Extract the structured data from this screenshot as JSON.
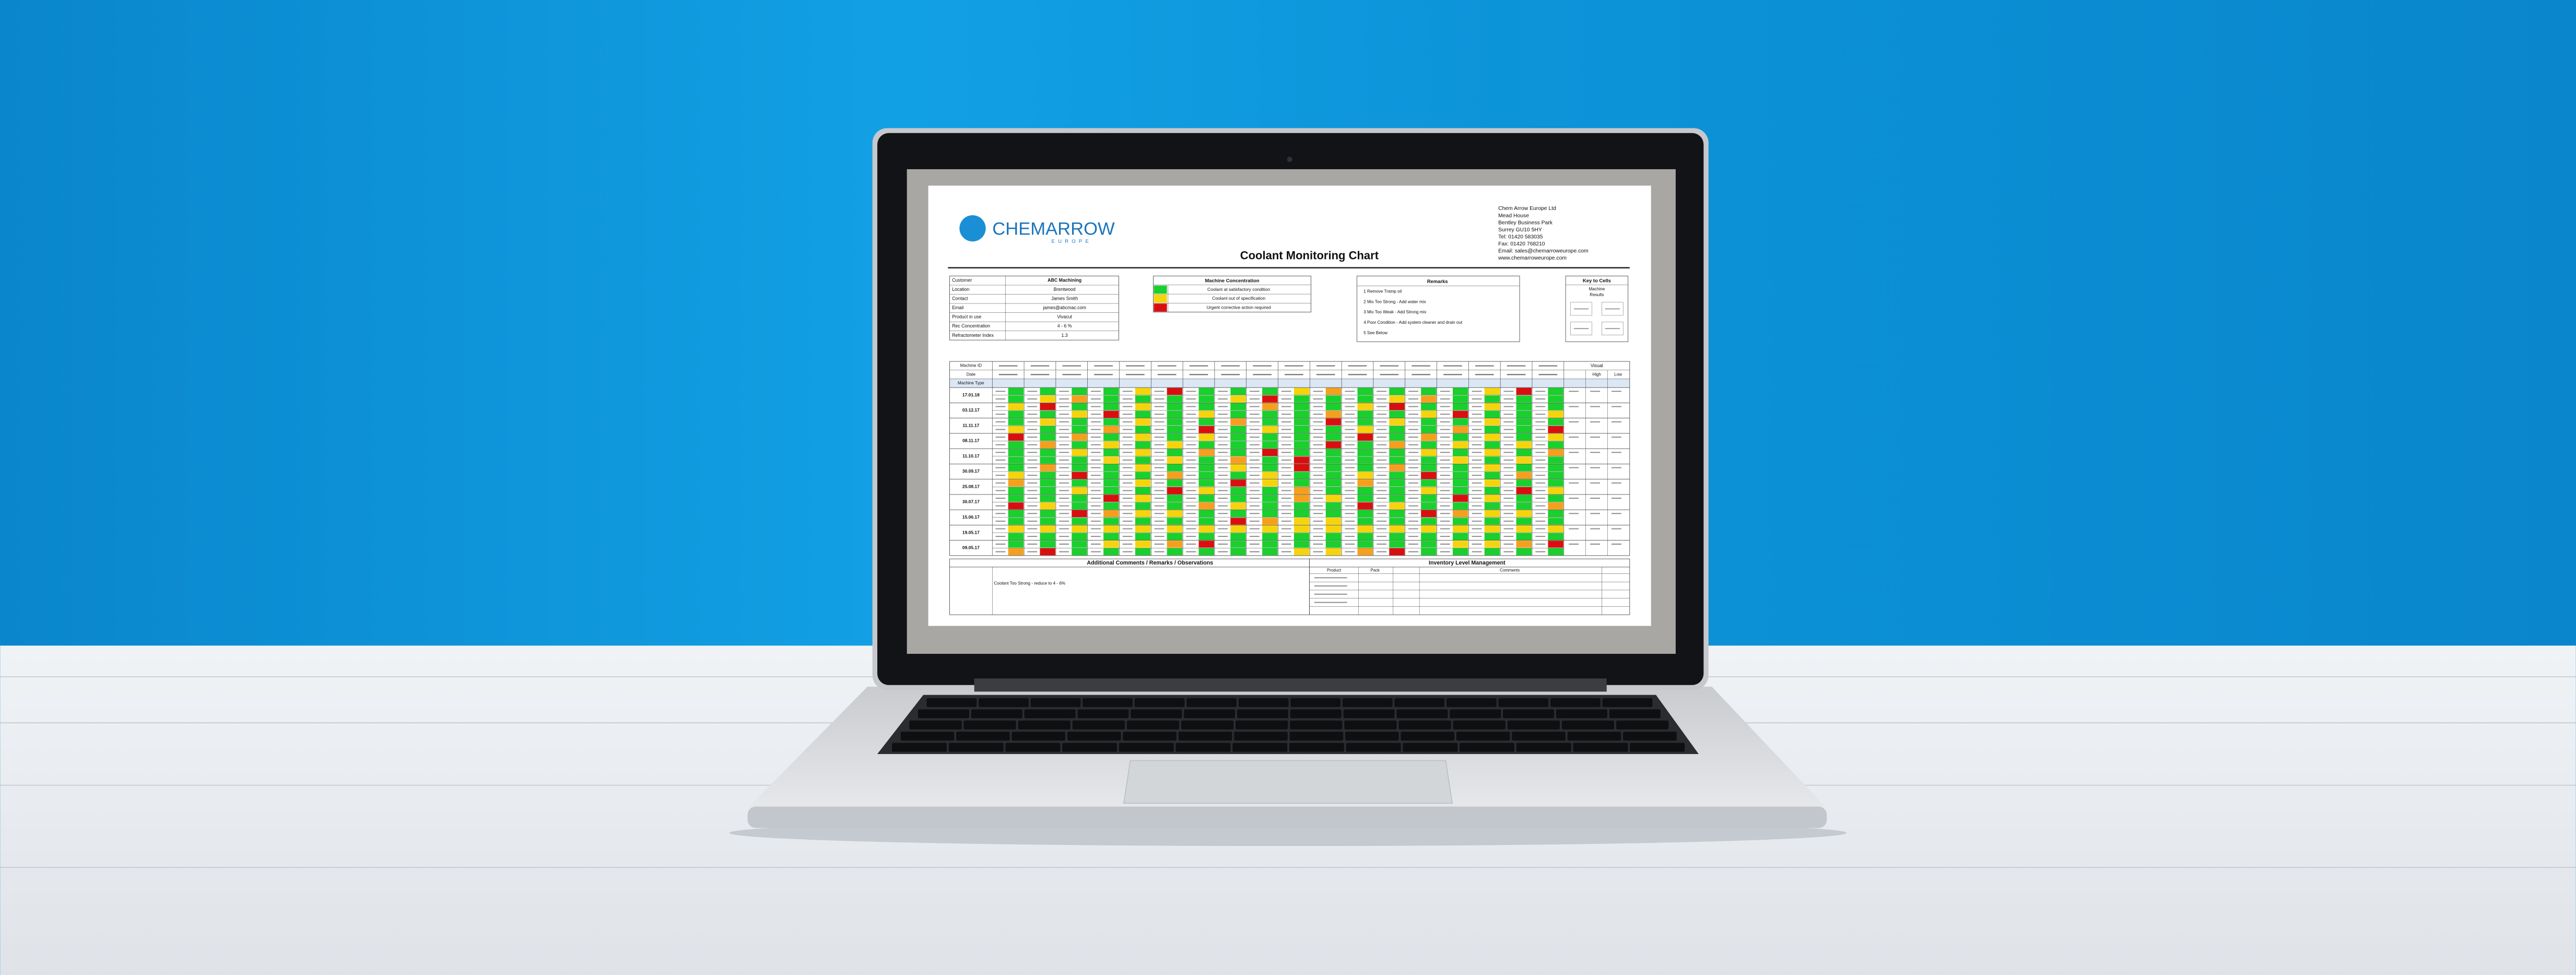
{
  "logo": {
    "name": "CHEMARROW",
    "tagline": "EUROPE"
  },
  "address": [
    "Chem Arrow Europe Ltd",
    "Mead House",
    "Bentley Business Park",
    "Surrey GU10 5HY",
    "Tel: 01420 583035",
    "Fax: 01420 768210",
    "Email: sales@chemarroweurope.com",
    "www.chemarroweurope.com"
  ],
  "title": "Coolant Monitoring Chart",
  "customer": {
    "rows": [
      [
        "Customer",
        "ABC Machining"
      ],
      [
        "Location",
        "Brentwood"
      ],
      [
        "Contact",
        "James Smith"
      ],
      [
        "Email",
        "james@abcmac.com"
      ],
      [
        "Product in use",
        "Vivacut"
      ],
      [
        "Rec Concentration",
        "4 - 6 %"
      ],
      [
        "Refractometer Index",
        "1.3"
      ]
    ]
  },
  "concentration": {
    "title": "Machine Concentration",
    "rows": [
      "Coolant at satisfactory condition",
      "Coolant out of specification",
      "Urgent corrective action required"
    ]
  },
  "remarks": {
    "title": "Remarks",
    "items": [
      "1   Remove Tramp oil",
      "2   Mix Too Strong - Add water mix",
      "3   Mix Too Weak - Add Strong mix",
      "4   Poor Condition - Add system cleaner and drain out",
      "5   See Below"
    ]
  },
  "key": {
    "title": "Key to Cells",
    "items": [
      "Machine",
      "Results"
    ]
  },
  "table": {
    "headers": [
      "Machine ID",
      "Date",
      "Machine Type"
    ],
    "dates": [
      "17.01.18",
      "03.12.17",
      "11.11.17",
      "08.11.17",
      "11.10.17",
      "30.09.17",
      "25.08.17",
      "30.07.17",
      "15.06.17",
      "19.05.17",
      "09.05.17"
    ],
    "visual": "Visual",
    "high": "High",
    "low": "Low"
  },
  "comments": {
    "title": "Additional Comments / Remarks / Observations",
    "note": "Coolant Too Strong - reduce to 4 - 6%"
  },
  "inventory": {
    "title": "Inventory Level Management",
    "headers": [
      "Product",
      "Pack",
      "Comments"
    ]
  }
}
